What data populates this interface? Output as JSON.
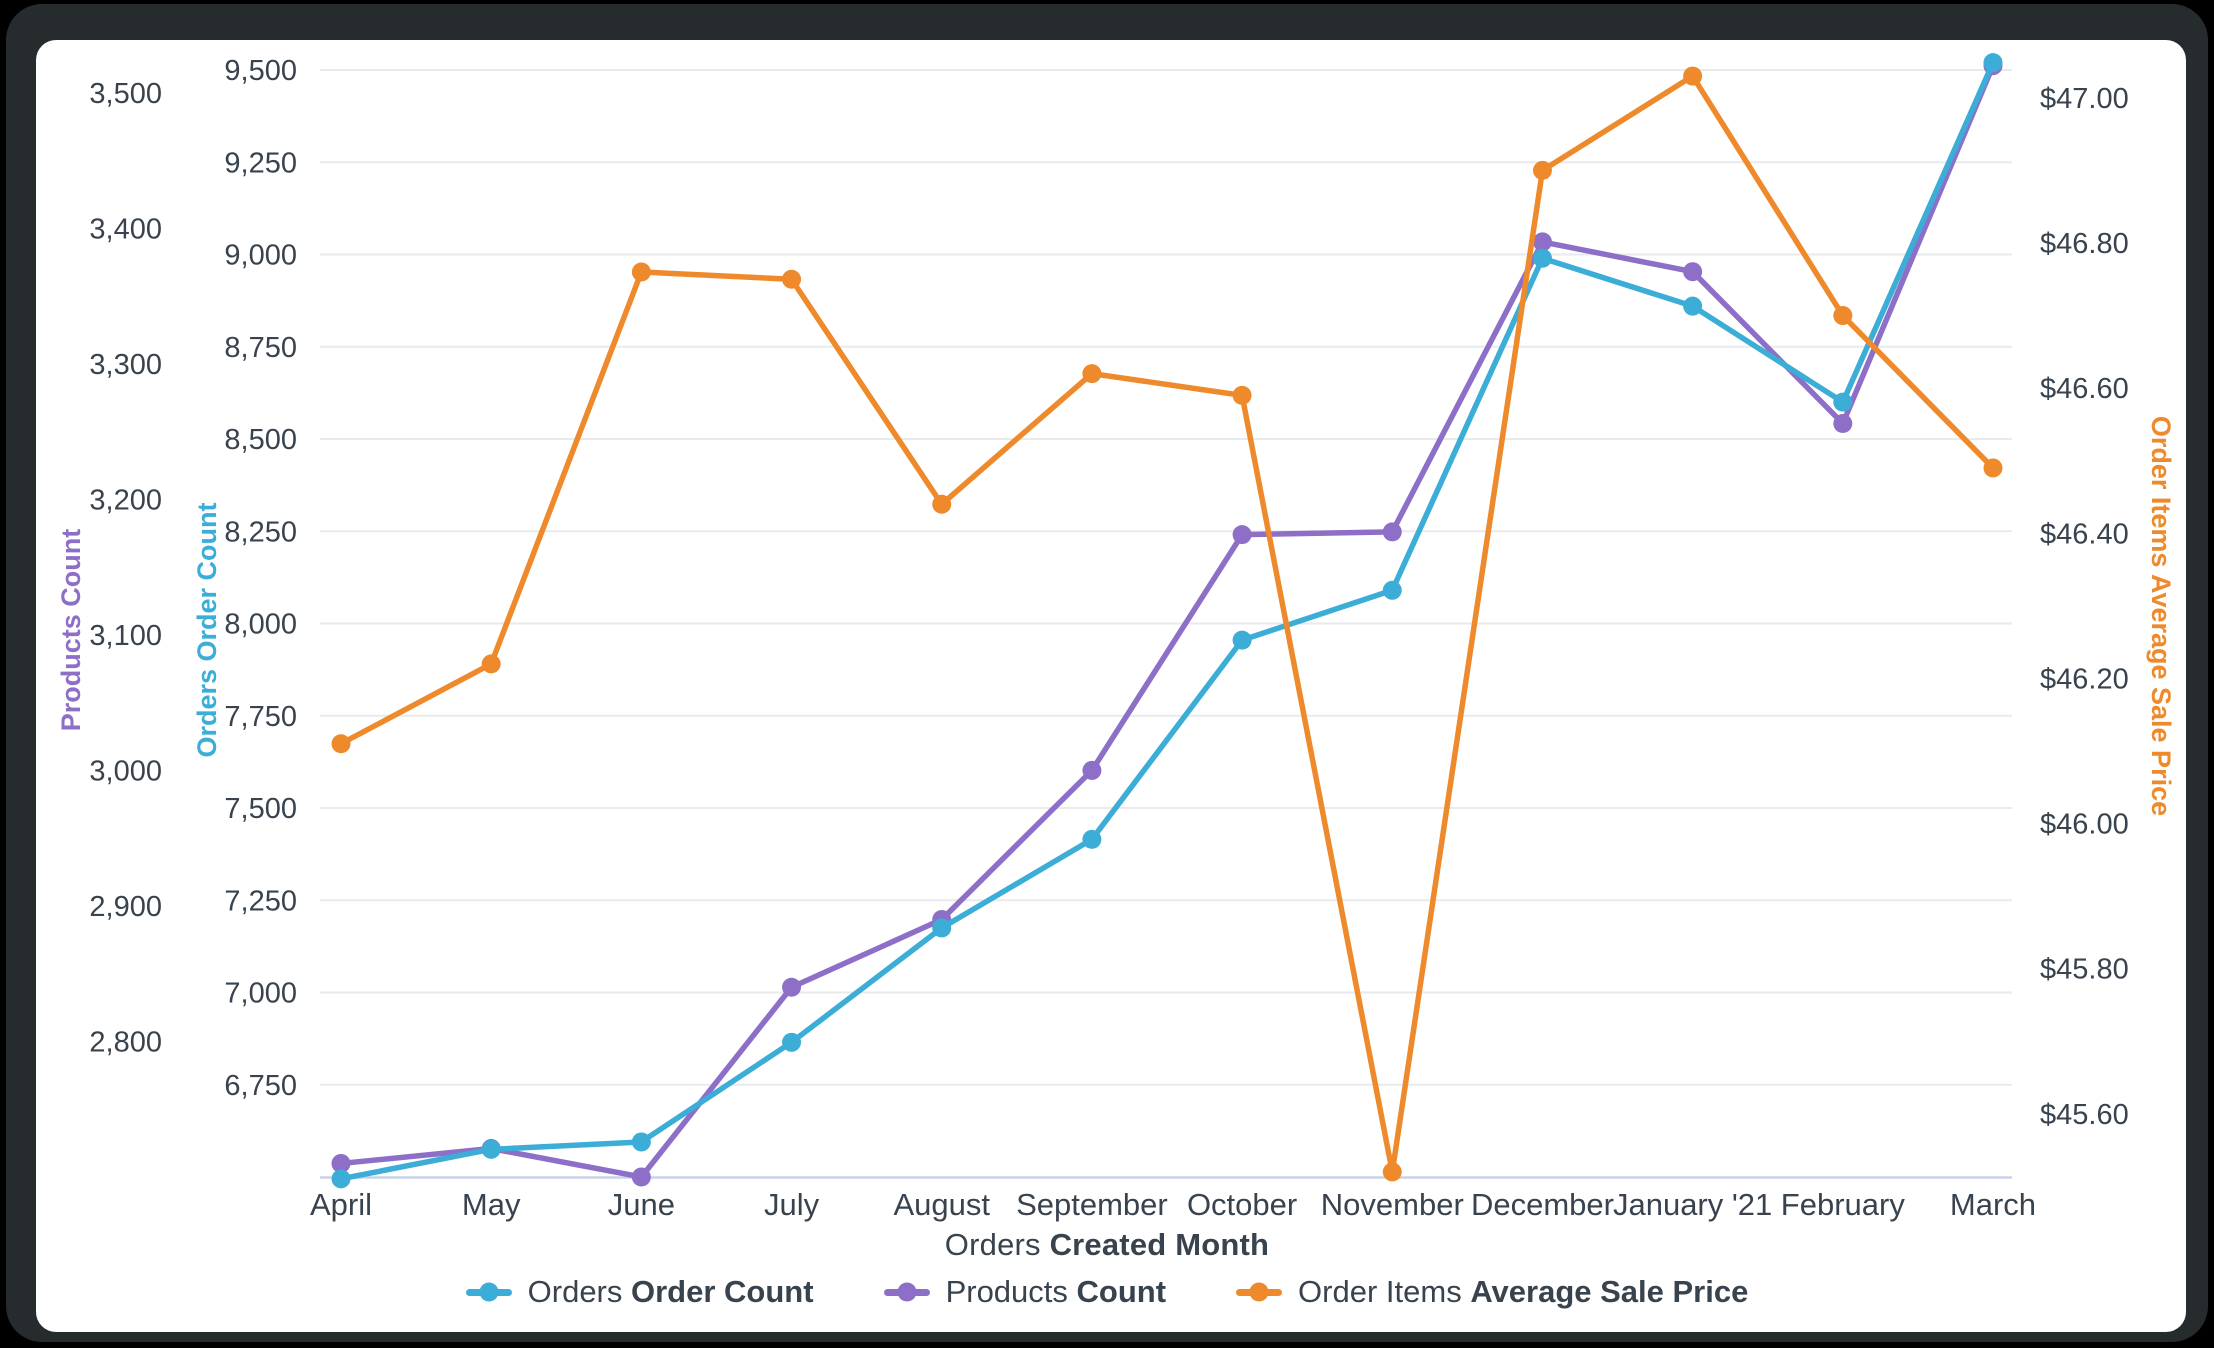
{
  "page": {
    "background": "#000000",
    "window_color": "#262C2E",
    "card_color": "#FFFFFF"
  },
  "chart_data": {
    "type": "line",
    "title": "",
    "x_categories": [
      "April",
      "May",
      "June",
      "July",
      "August",
      "September",
      "October",
      "November",
      "December",
      "January '21",
      "February",
      "March"
    ],
    "xlabel_prefix": "Orders",
    "xlabel_bold": "Created Month",
    "grid": {
      "grid_on": true,
      "line_color": "#E9EAEC",
      "baseline_color": "#C9D4E8",
      "tick_text_color": "#39434E"
    },
    "axes": {
      "products": {
        "title": "Products Count",
        "color": "#8E6FC8",
        "side": "outer-left",
        "min": 2700,
        "max": 3522,
        "ticks": [
          {
            "v": 2800,
            "label": "2,800"
          },
          {
            "v": 2900,
            "label": "2,900"
          },
          {
            "v": 3000,
            "label": "3,000"
          },
          {
            "v": 3100,
            "label": "3,100"
          },
          {
            "v": 3200,
            "label": "3,200"
          },
          {
            "v": 3300,
            "label": "3,300"
          },
          {
            "v": 3400,
            "label": "3,400"
          },
          {
            "v": 3500,
            "label": "3,500"
          }
        ]
      },
      "orders": {
        "title": "Orders Order Count",
        "color": "#3BADD6",
        "side": "inner-left",
        "min": 6500,
        "max": 9519,
        "ticks": [
          {
            "v": 6750,
            "label": "6,750"
          },
          {
            "v": 7000,
            "label": "7,000"
          },
          {
            "v": 7250,
            "label": "7,250"
          },
          {
            "v": 7500,
            "label": "7,500"
          },
          {
            "v": 7750,
            "label": "7,750"
          },
          {
            "v": 8000,
            "label": "8,000"
          },
          {
            "v": 8250,
            "label": "8,250"
          },
          {
            "v": 8500,
            "label": "8,500"
          },
          {
            "v": 8750,
            "label": "8,750"
          },
          {
            "v": 9000,
            "label": "9,000"
          },
          {
            "v": 9250,
            "label": "9,250"
          },
          {
            "v": 9500,
            "label": "9,500"
          }
        ]
      },
      "price": {
        "title": "Order Items Average Sale Price",
        "color": "#EE8A2B",
        "side": "right",
        "min": 45.513,
        "max": 47.048,
        "ticks": [
          {
            "v": 45.6,
            "label": "$45.60"
          },
          {
            "v": 45.8,
            "label": "$45.80"
          },
          {
            "v": 46.0,
            "label": "$46.00"
          },
          {
            "v": 46.2,
            "label": "$46.20"
          },
          {
            "v": 46.4,
            "label": "$46.40"
          },
          {
            "v": 46.6,
            "label": "$46.60"
          },
          {
            "v": 46.8,
            "label": "$46.80"
          },
          {
            "v": 47.0,
            "label": "$47.00"
          }
        ]
      }
    },
    "series": [
      {
        "id": "orders-order-count",
        "label_prefix": "Orders",
        "label_bold": "Order Count",
        "color": "#3BADD6",
        "axis": "orders",
        "values": [
          6495,
          6575,
          6595,
          6865,
          7175,
          7415,
          7955,
          8090,
          8990,
          8860,
          8600,
          9520
        ]
      },
      {
        "id": "products-count",
        "label_prefix": "Products",
        "label_bold": "Count",
        "color": "#8E6FC8",
        "axis": "products",
        "values": [
          2710,
          2721,
          2700,
          2840,
          2890,
          3000,
          3174,
          3176,
          3390,
          3368,
          3256,
          3520
        ]
      },
      {
        "id": "order-items-average-sale-price",
        "label_prefix": "Order Items",
        "label_bold": "Average Sale Price",
        "color": "#EE8A2B",
        "axis": "price",
        "values": [
          46.11,
          46.22,
          46.76,
          46.75,
          46.44,
          46.62,
          46.59,
          45.52,
          46.9,
          47.03,
          46.7,
          46.49
        ]
      }
    ],
    "legend_position": "bottom"
  }
}
